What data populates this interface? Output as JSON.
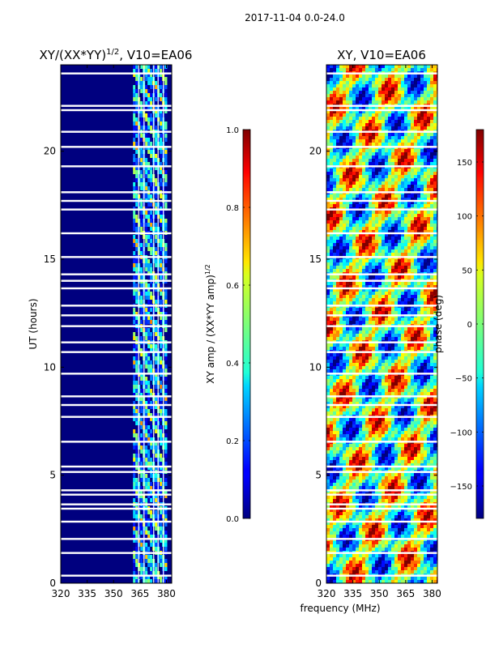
{
  "suptitle": "2017-11-04 0.0-24.0",
  "chart_data": [
    {
      "type": "heatmap",
      "title": "XY/(XX*YY)^1/2, V10=EA06",
      "title_main": "XY/(XX*YY)",
      "title_exp": "1/2",
      "title_tail": ", V10=EA06",
      "xlabel": "",
      "ylabel": "UT (hours)",
      "xlim": [
        320,
        383
      ],
      "ylim": [
        0,
        24
      ],
      "xticks": [
        "320",
        "335",
        "350",
        "365",
        "380"
      ],
      "xtick_values": [
        320,
        335,
        350,
        365,
        380
      ],
      "yticks": [
        "0",
        "5",
        "10",
        "15",
        "20"
      ],
      "ytick_values": [
        0,
        5,
        10,
        15,
        20
      ],
      "colorbar": {
        "label": "XY amp / (XX*YY amp)^1/2",
        "label_main": "XY amp / (XX*YY amp)",
        "label_exp": "1/2",
        "range": [
          0.0,
          1.0
        ],
        "ticks": [
          "0.0",
          "0.2",
          "0.4",
          "0.6",
          "0.8",
          "1.0"
        ],
        "tick_values": [
          0.0,
          0.2,
          0.4,
          0.6,
          0.8,
          1.0
        ],
        "colormap": "jet"
      },
      "active_band_mhz": [
        361,
        380
      ],
      "gap_hours": [
        0.35,
        1.4,
        2.05,
        2.85,
        3.45,
        3.65,
        4.1,
        4.3,
        5.15,
        5.4,
        6.55,
        7.7,
        8.25,
        8.65,
        9.7,
        10.7,
        11.15,
        11.9,
        12.4,
        12.85,
        13.65,
        14.0,
        14.3,
        15.1,
        16.2,
        17.3,
        17.7,
        18.1,
        19.3,
        20.2,
        20.9,
        21.9,
        22.1,
        23.6
      ],
      "blank_columns_mhz": [
        364,
        367,
        372.5,
        375,
        378
      ]
    },
    {
      "type": "heatmap",
      "title": "XY, V10=EA06",
      "xlabel": "frequency (MHz)",
      "ylabel": "",
      "xlim": [
        320,
        383
      ],
      "ylim": [
        0,
        24
      ],
      "xticks": [
        "320",
        "335",
        "350",
        "365",
        "380"
      ],
      "xtick_values": [
        320,
        335,
        350,
        365,
        380
      ],
      "yticks": [
        "0",
        "5",
        "10",
        "15",
        "20"
      ],
      "ytick_values": [
        0,
        5,
        10,
        15,
        20
      ],
      "colorbar": {
        "label": "phase (deg)",
        "range": [
          -180,
          180
        ],
        "ticks": [
          "−150",
          "−100",
          "−50",
          "0",
          "50",
          "100",
          "150"
        ],
        "tick_values": [
          -150,
          -100,
          -50,
          0,
          50,
          100,
          150
        ],
        "colormap": "jet"
      },
      "gap_hours": [
        0.35,
        1.4,
        2.05,
        2.85,
        3.45,
        3.65,
        4.1,
        4.3,
        5.15,
        5.4,
        6.55,
        7.7,
        8.25,
        8.65,
        9.7,
        10.7,
        11.15,
        11.9,
        12.4,
        12.85,
        13.65,
        14.0,
        14.3,
        15.1,
        16.2,
        17.3,
        17.7,
        18.1,
        19.3,
        20.2,
        20.9,
        21.9,
        22.1,
        23.6
      ]
    }
  ]
}
